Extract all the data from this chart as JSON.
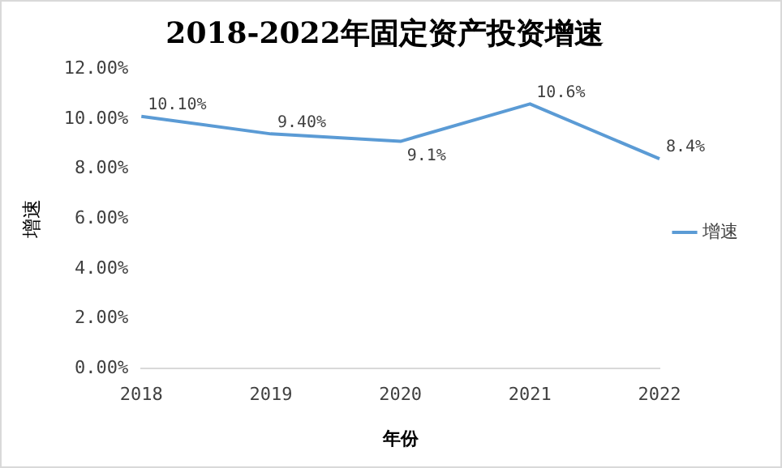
{
  "chart_data": {
    "type": "line",
    "title": "2018-2022年固定资产投资增速",
    "xlabel": "年份",
    "ylabel": "增速",
    "categories": [
      "2018",
      "2019",
      "2020",
      "2021",
      "2022"
    ],
    "series": [
      {
        "name": "增速",
        "color": "#5b9bd5",
        "values": [
          10.1,
          9.4,
          9.1,
          10.6,
          8.4
        ],
        "value_labels": [
          "10.10%",
          "9.40%",
          "9.1%",
          "10.6%",
          "8.4%"
        ]
      }
    ],
    "ylim": [
      0,
      12
    ],
    "yticks": [
      {
        "value": 0,
        "label": "0.00%"
      },
      {
        "value": 2,
        "label": "2.00%"
      },
      {
        "value": 4,
        "label": "4.00%"
      },
      {
        "value": 6,
        "label": "6.00%"
      },
      {
        "value": 8,
        "label": "8.00%"
      },
      {
        "value": 10,
        "label": "10.00%"
      },
      {
        "value": 12,
        "label": "12.00%"
      }
    ],
    "grid": false,
    "legend": "right",
    "marker": "none",
    "line_style": "solid"
  }
}
